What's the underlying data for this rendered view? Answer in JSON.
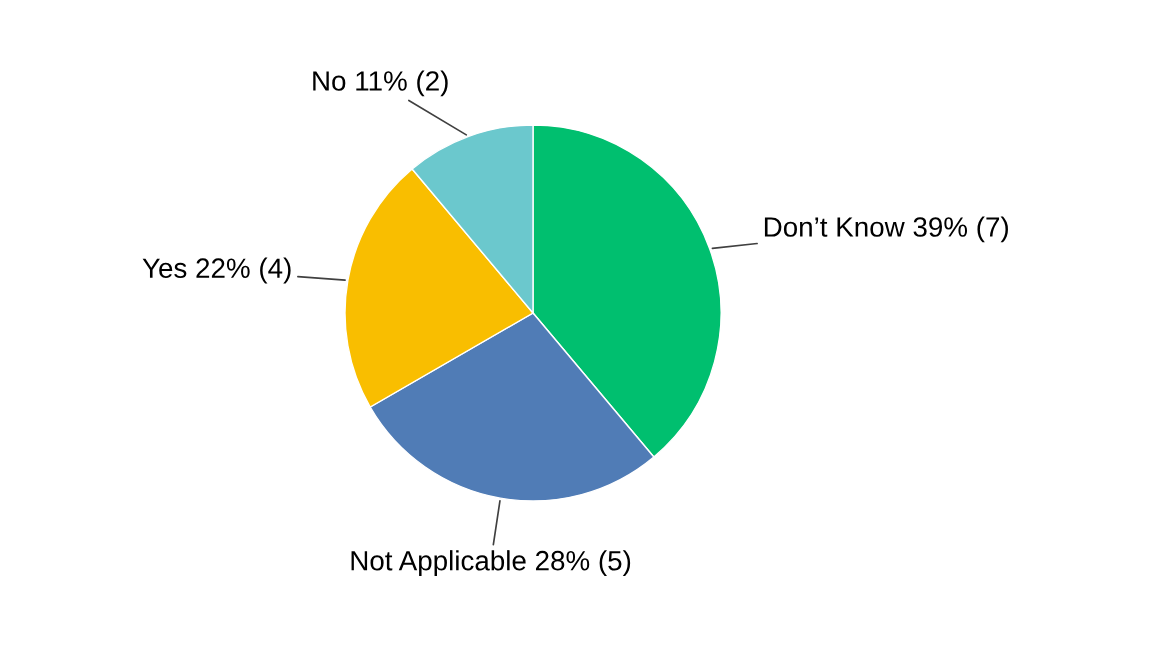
{
  "chart_data": {
    "type": "pie",
    "categories": [
      "Don’t Know",
      "Not Applicable",
      "Yes",
      "No"
    ],
    "values": [
      7,
      5,
      4,
      2
    ],
    "value_labels": [
      "39% (7)",
      "28% (5)",
      "22% (4)",
      "11% (2)"
    ],
    "colors": [
      "#00bf6f",
      "#507cb6",
      "#f9be00",
      "#6bc8cd"
    ],
    "legend": false
  }
}
